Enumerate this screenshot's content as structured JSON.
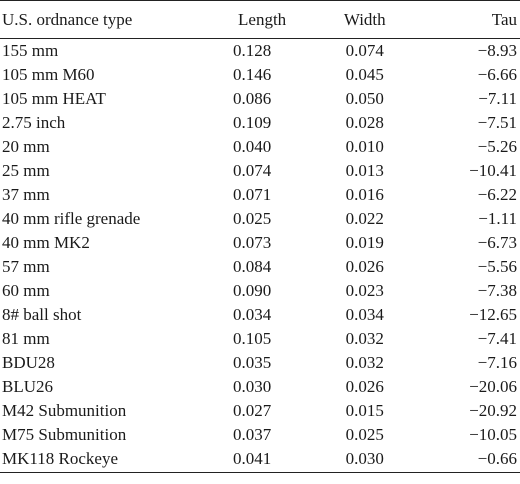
{
  "table": {
    "headers": [
      "U.S. ordnance type",
      "Length",
      "Width",
      "Tau"
    ],
    "rows": [
      [
        "155 mm",
        "0.128",
        "0.074",
        "−8.93"
      ],
      [
        "105 mm M60",
        "0.146",
        "0.045",
        "−6.66"
      ],
      [
        "105 mm HEAT",
        "0.086",
        "0.050",
        "−7.11"
      ],
      [
        "2.75 inch",
        "0.109",
        "0.028",
        "−7.51"
      ],
      [
        "20 mm",
        "0.040",
        "0.010",
        "−5.26"
      ],
      [
        "25 mm",
        "0.074",
        "0.013",
        "−10.41"
      ],
      [
        "37 mm",
        "0.071",
        "0.016",
        "−6.22"
      ],
      [
        "40 mm rifle grenade",
        "0.025",
        "0.022",
        "−1.11"
      ],
      [
        "40 mm MK2",
        "0.073",
        "0.019",
        "−6.73"
      ],
      [
        "57 mm",
        "0.084",
        "0.026",
        "−5.56"
      ],
      [
        "60 mm",
        "0.090",
        "0.023",
        "−7.38"
      ],
      [
        "8# ball shot",
        "0.034",
        "0.034",
        "−12.65"
      ],
      [
        "81 mm",
        "0.105",
        "0.032",
        "−7.41"
      ],
      [
        "BDU28",
        "0.035",
        "0.032",
        "−7.16"
      ],
      [
        "BLU26",
        "0.030",
        "0.026",
        "−20.06"
      ],
      [
        "M42 Submunition",
        "0.027",
        "0.015",
        "−20.92"
      ],
      [
        "M75 Submunition",
        "0.037",
        "0.025",
        "−10.05"
      ],
      [
        "MK118 Rockeye",
        "0.041",
        "0.030",
        "−0.66"
      ]
    ]
  }
}
